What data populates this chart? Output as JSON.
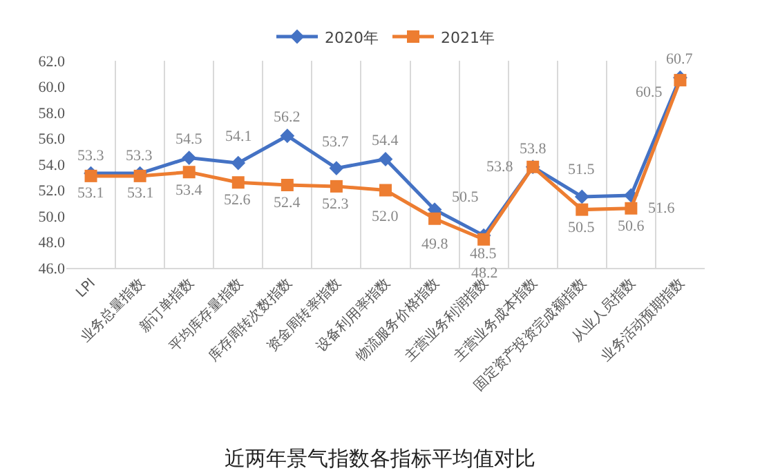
{
  "chart_data": {
    "type": "line",
    "title": "近两年景气指数各指标平均值对比",
    "categories": [
      "LPI",
      "业务总量指数",
      "新订单指数",
      "平均库存量指数",
      "库存周转次数指数",
      "资金周转率指数",
      "设备利用率指数",
      "物流服务价格指数",
      "主营业务利润指数",
      "主营业务成本指数",
      "固定资产投资完成额指数",
      "从业人员指数",
      "业务活动预期指数"
    ],
    "series": [
      {
        "name": "2020年",
        "color": "#4472c4",
        "marker": "diamond",
        "values": [
          53.3,
          53.3,
          54.5,
          54.1,
          56.2,
          53.7,
          54.4,
          50.5,
          48.5,
          53.8,
          51.5,
          51.6,
          60.7
        ],
        "value_labels": [
          "53.3",
          "53.3",
          "54.5",
          "54.1",
          "56.2",
          "53.7",
          "54.4",
          "50.5",
          "48.5",
          "53.8",
          "51.5",
          "51.6",
          "60.7"
        ]
      },
      {
        "name": "2021年",
        "color": "#ed7d31",
        "marker": "square",
        "values": [
          53.1,
          53.1,
          53.4,
          52.6,
          52.4,
          52.3,
          52.0,
          49.8,
          48.2,
          53.8,
          50.5,
          50.6,
          60.5
        ],
        "value_labels": [
          "53.1",
          "53.1",
          "53.4",
          "52.6",
          "52.4",
          "52.3",
          "52.0",
          "49.8",
          "48.2",
          "53.8",
          "50.5",
          "50.6",
          "60.5"
        ]
      }
    ],
    "ylim": [
      46,
      62
    ],
    "yticks": [
      {
        "value": 46,
        "label": "46.0"
      },
      {
        "value": 48,
        "label": "48.0"
      },
      {
        "value": 50,
        "label": "50.0"
      },
      {
        "value": 52,
        "label": "52.0"
      },
      {
        "value": 54,
        "label": "54.0"
      },
      {
        "value": 56,
        "label": "56.0"
      },
      {
        "value": 58,
        "label": "58.0"
      },
      {
        "value": 60,
        "label": "60.0"
      },
      {
        "value": 62,
        "label": "62.0"
      }
    ],
    "grid": "x",
    "legend": "top",
    "line_style": "solid"
  }
}
